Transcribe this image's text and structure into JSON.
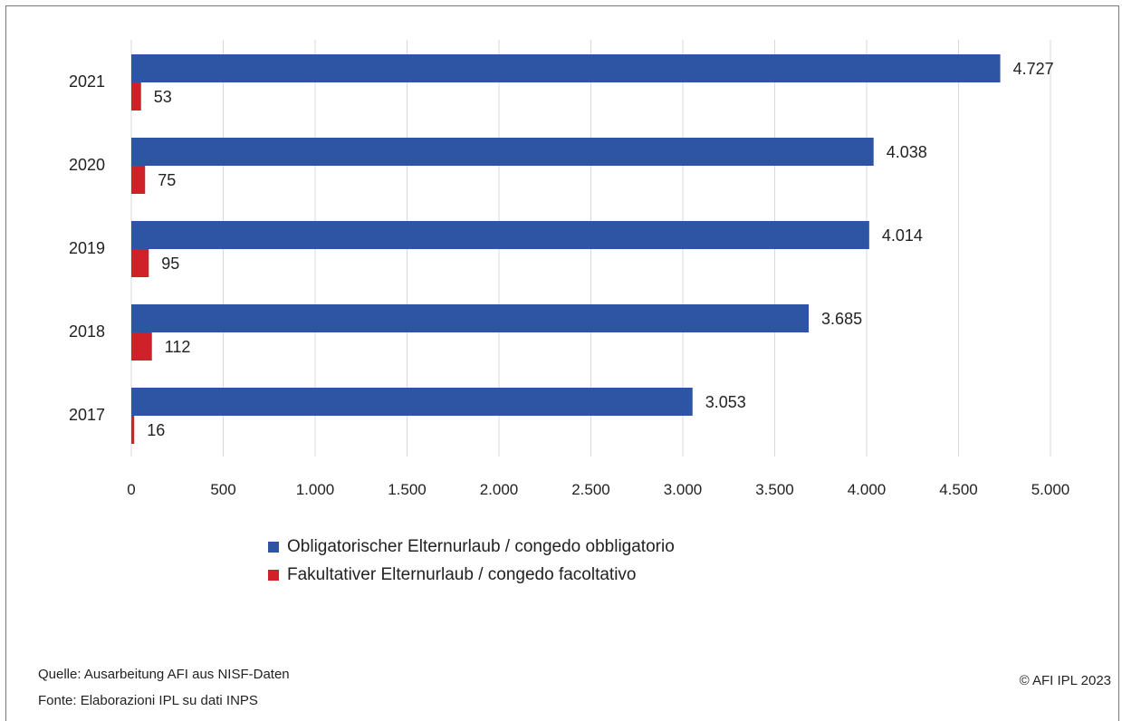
{
  "chart_data": {
    "type": "bar",
    "orientation": "horizontal",
    "categories": [
      "2021",
      "2020",
      "2019",
      "2018",
      "2017"
    ],
    "series": [
      {
        "name": "Obligatorischer Elternurlaub / congedo obbligatorio",
        "color": "#2e55a4",
        "values": [
          4727,
          4038,
          4014,
          3685,
          3053
        ]
      },
      {
        "name": "Fakultativer Elternurlaub / congedo facoltativo",
        "color": "#d0202a",
        "values": [
          53,
          75,
          95,
          112,
          16
        ]
      }
    ],
    "value_labels": [
      [
        "4.727",
        "4.038",
        "4.014",
        "3.685",
        "3.053"
      ],
      [
        "53",
        "75",
        "95",
        "112",
        "16"
      ]
    ],
    "xlim": [
      0,
      5000
    ],
    "x_ticks": [
      0,
      500,
      1000,
      1500,
      2000,
      2500,
      3000,
      3500,
      4000,
      4500,
      5000
    ],
    "x_tick_labels": [
      "0",
      "500",
      "1.000",
      "1.500",
      "2.000",
      "2.500",
      "3.000",
      "3.500",
      "4.000",
      "4.500",
      "5.000"
    ],
    "grid": "vertical",
    "legend_position": "bottom",
    "title": "",
    "xlabel": "",
    "ylabel": ""
  },
  "footer": {
    "source_de": "Quelle: Ausarbeitung AFI aus NISF-Daten",
    "source_it": "Fonte: Elaborazioni IPL su dati INPS",
    "copyright": "© AFI IPL 2023"
  }
}
